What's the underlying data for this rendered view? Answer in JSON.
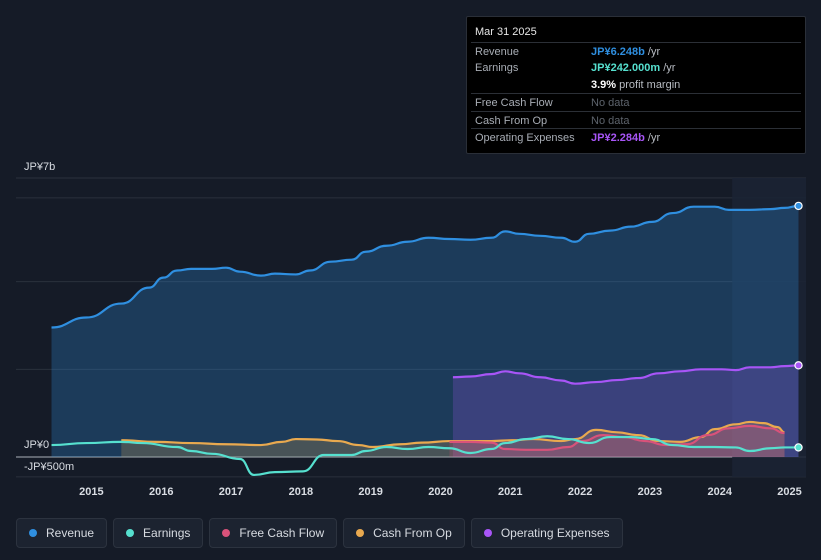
{
  "tooltip": {
    "date": "Mar 31 2025",
    "rows": [
      {
        "label": "Revenue",
        "value": "JP¥6.248b",
        "unit": "/yr",
        "color": "#2f8fe0"
      },
      {
        "label": "Earnings",
        "value": "JP¥242.000m",
        "unit": "/yr",
        "color": "#56e0cf"
      },
      {
        "label": "",
        "value": "3.9%",
        "unit": "profit margin",
        "color": "#ffffff"
      },
      {
        "label": "Free Cash Flow",
        "value": "No data",
        "unit": "",
        "color": "#5d636c"
      },
      {
        "label": "Cash From Op",
        "value": "No data",
        "unit": "",
        "color": "#5d636c"
      },
      {
        "label": "Operating Expenses",
        "value": "JP¥2.284b",
        "unit": "/yr",
        "color": "#a855f7"
      }
    ]
  },
  "legend": [
    {
      "label": "Revenue",
      "color": "#2f8fe0"
    },
    {
      "label": "Earnings",
      "color": "#56e0cf"
    },
    {
      "label": "Free Cash Flow",
      "color": "#d9527a"
    },
    {
      "label": "Cash From Op",
      "color": "#e9a94f"
    },
    {
      "label": "Operating Expenses",
      "color": "#a855f7"
    }
  ],
  "chart_data": {
    "type": "line",
    "title": "",
    "xlabel": "",
    "ylabel": "",
    "ylim": [
      -0.5,
      7.0
    ],
    "xlim": [
      2014.45,
      2025.25
    ],
    "y_tick_labels": [
      {
        "value": 7.0,
        "label": "JP¥7b"
      },
      {
        "value": 0,
        "label": "JP¥0"
      },
      {
        "value": -0.5,
        "label": "-JP¥500m"
      }
    ],
    "x_tick_labels": [
      "2015",
      "2016",
      "2017",
      "2018",
      "2019",
      "2020",
      "2021",
      "2022",
      "2023",
      "2024",
      "2025"
    ],
    "x_tick_values": [
      2015,
      2016,
      2017,
      2018,
      2019,
      2020,
      2021,
      2022,
      2023,
      2024,
      2025
    ],
    "highlight_from": 2024.25,
    "series": [
      {
        "name": "Revenue",
        "color": "#2f8fe0",
        "area": true,
        "points": [
          [
            2014.5,
            3.25
          ],
          [
            2015.0,
            3.5
          ],
          [
            2015.5,
            3.85
          ],
          [
            2015.9,
            4.25
          ],
          [
            2016.1,
            4.5
          ],
          [
            2016.3,
            4.68
          ],
          [
            2016.5,
            4.72
          ],
          [
            2016.8,
            4.72
          ],
          [
            2017.0,
            4.75
          ],
          [
            2017.2,
            4.65
          ],
          [
            2017.5,
            4.55
          ],
          [
            2017.7,
            4.6
          ],
          [
            2018.0,
            4.58
          ],
          [
            2018.2,
            4.68
          ],
          [
            2018.5,
            4.9
          ],
          [
            2018.8,
            4.95
          ],
          [
            2019.0,
            5.15
          ],
          [
            2019.3,
            5.3
          ],
          [
            2019.6,
            5.4
          ],
          [
            2019.9,
            5.5
          ],
          [
            2020.2,
            5.47
          ],
          [
            2020.5,
            5.45
          ],
          [
            2020.8,
            5.5
          ],
          [
            2021.0,
            5.66
          ],
          [
            2021.2,
            5.6
          ],
          [
            2021.5,
            5.55
          ],
          [
            2021.8,
            5.5
          ],
          [
            2022.0,
            5.4
          ],
          [
            2022.2,
            5.6
          ],
          [
            2022.5,
            5.68
          ],
          [
            2022.8,
            5.78
          ],
          [
            2023.1,
            5.9
          ],
          [
            2023.4,
            6.12
          ],
          [
            2023.7,
            6.28
          ],
          [
            2024.0,
            6.28
          ],
          [
            2024.2,
            6.2
          ],
          [
            2024.5,
            6.2
          ],
          [
            2024.8,
            6.22
          ],
          [
            2025.0,
            6.25
          ],
          [
            2025.2,
            6.3
          ]
        ]
      },
      {
        "name": "Operating Expenses",
        "color": "#a855f7",
        "area": true,
        "points": [
          [
            2020.25,
            2.0
          ],
          [
            2020.5,
            2.02
          ],
          [
            2020.8,
            2.08
          ],
          [
            2021.0,
            2.15
          ],
          [
            2021.2,
            2.1
          ],
          [
            2021.5,
            2.0
          ],
          [
            2021.8,
            1.92
          ],
          [
            2022.0,
            1.84
          ],
          [
            2022.3,
            1.88
          ],
          [
            2022.6,
            1.93
          ],
          [
            2022.9,
            1.98
          ],
          [
            2023.2,
            2.1
          ],
          [
            2023.5,
            2.15
          ],
          [
            2023.8,
            2.2
          ],
          [
            2024.1,
            2.2
          ],
          [
            2024.3,
            2.18
          ],
          [
            2024.5,
            2.25
          ],
          [
            2024.8,
            2.25
          ],
          [
            2025.0,
            2.28
          ],
          [
            2025.2,
            2.3
          ]
        ]
      },
      {
        "name": "Cash From Op",
        "color": "#e9a94f",
        "area": true,
        "points": [
          [
            2015.5,
            0.42
          ],
          [
            2016.0,
            0.38
          ],
          [
            2016.5,
            0.35
          ],
          [
            2017.0,
            0.32
          ],
          [
            2017.5,
            0.3
          ],
          [
            2017.8,
            0.38
          ],
          [
            2018.0,
            0.45
          ],
          [
            2018.3,
            0.44
          ],
          [
            2018.6,
            0.4
          ],
          [
            2018.9,
            0.3
          ],
          [
            2019.1,
            0.25
          ],
          [
            2019.5,
            0.32
          ],
          [
            2019.8,
            0.36
          ],
          [
            2020.2,
            0.4
          ],
          [
            2020.5,
            0.4
          ],
          [
            2020.8,
            0.4
          ],
          [
            2021.1,
            0.42
          ],
          [
            2021.4,
            0.45
          ],
          [
            2021.8,
            0.4
          ],
          [
            2022.0,
            0.45
          ],
          [
            2022.3,
            0.68
          ],
          [
            2022.6,
            0.62
          ],
          [
            2022.9,
            0.55
          ],
          [
            2023.2,
            0.4
          ],
          [
            2023.5,
            0.38
          ],
          [
            2023.8,
            0.5
          ],
          [
            2024.0,
            0.7
          ],
          [
            2024.3,
            0.82
          ],
          [
            2024.5,
            0.88
          ],
          [
            2024.7,
            0.85
          ],
          [
            2024.9,
            0.75
          ],
          [
            2025.0,
            0.62
          ]
        ]
      },
      {
        "name": "Free Cash Flow",
        "color": "#d9527a",
        "area": true,
        "points": [
          [
            2020.2,
            0.38
          ],
          [
            2020.5,
            0.38
          ],
          [
            2020.8,
            0.36
          ],
          [
            2021.0,
            0.2
          ],
          [
            2021.3,
            0.18
          ],
          [
            2021.6,
            0.18
          ],
          [
            2021.9,
            0.25
          ],
          [
            2022.1,
            0.4
          ],
          [
            2022.4,
            0.55
          ],
          [
            2022.7,
            0.5
          ],
          [
            2023.0,
            0.4
          ],
          [
            2023.3,
            0.3
          ],
          [
            2023.6,
            0.32
          ],
          [
            2023.9,
            0.55
          ],
          [
            2024.2,
            0.72
          ],
          [
            2024.5,
            0.78
          ],
          [
            2024.8,
            0.72
          ],
          [
            2025.0,
            0.6
          ]
        ]
      },
      {
        "name": "Earnings",
        "color": "#56e0cf",
        "area": false,
        "points": [
          [
            2014.5,
            0.3
          ],
          [
            2015.0,
            0.35
          ],
          [
            2015.5,
            0.38
          ],
          [
            2015.8,
            0.35
          ],
          [
            2016.3,
            0.25
          ],
          [
            2016.5,
            0.15
          ],
          [
            2016.8,
            0.08
          ],
          [
            2017.2,
            -0.05
          ],
          [
            2017.4,
            -0.45
          ],
          [
            2017.7,
            -0.38
          ],
          [
            2018.1,
            -0.36
          ],
          [
            2018.4,
            0.05
          ],
          [
            2018.8,
            0.05
          ],
          [
            2019.0,
            0.15
          ],
          [
            2019.3,
            0.25
          ],
          [
            2019.6,
            0.2
          ],
          [
            2019.9,
            0.25
          ],
          [
            2020.2,
            0.22
          ],
          [
            2020.5,
            0.1
          ],
          [
            2020.8,
            0.2
          ],
          [
            2021.0,
            0.35
          ],
          [
            2021.3,
            0.45
          ],
          [
            2021.6,
            0.52
          ],
          [
            2021.9,
            0.45
          ],
          [
            2022.2,
            0.35
          ],
          [
            2022.5,
            0.5
          ],
          [
            2022.8,
            0.5
          ],
          [
            2023.1,
            0.45
          ],
          [
            2023.4,
            0.3
          ],
          [
            2023.7,
            0.25
          ],
          [
            2024.0,
            0.25
          ],
          [
            2024.3,
            0.24
          ],
          [
            2024.5,
            0.15
          ],
          [
            2024.8,
            0.22
          ],
          [
            2025.0,
            0.24
          ],
          [
            2025.2,
            0.24
          ]
        ]
      }
    ]
  }
}
